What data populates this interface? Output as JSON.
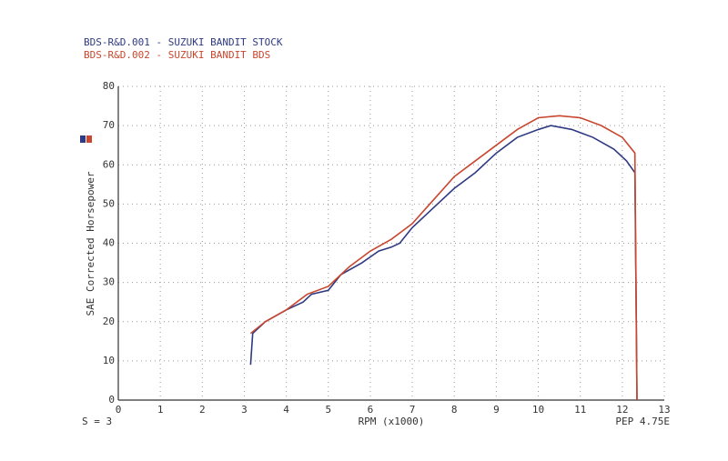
{
  "chart_data": {
    "type": "line",
    "legend_title": null,
    "xlabel": "RPM (x1000)",
    "ylabel": "SAE Corrected Horsepower",
    "footer_left": "S = 3",
    "footer_right": "PEP 4.75E",
    "xlim": [
      0,
      13
    ],
    "ylim": [
      0,
      80
    ],
    "xticks": [
      0,
      1,
      2,
      3,
      4,
      5,
      6,
      7,
      8,
      9,
      10,
      11,
      12,
      13
    ],
    "yticks": [
      0,
      10,
      20,
      30,
      40,
      50,
      60,
      70,
      80
    ],
    "grid": true,
    "series": [
      {
        "name": "BDS-R&D.001 - SUZUKI BANDIT STOCK",
        "color": "#2f3a82",
        "x": [
          3.15,
          3.2,
          3.5,
          4,
          4.4,
          4.6,
          5,
          5.3,
          5.8,
          6.2,
          6.5,
          6.7,
          7,
          7.5,
          8,
          8.5,
          9,
          9.5,
          10,
          10.3,
          10.8,
          11.3,
          11.8,
          12.1,
          12.3,
          12.35
        ],
        "values": [
          9,
          17,
          20,
          23,
          25,
          27,
          28,
          32,
          35,
          38,
          39,
          40,
          44,
          49,
          54,
          58,
          63,
          67,
          69,
          70,
          69,
          67,
          64,
          61,
          58,
          0
        ]
      },
      {
        "name": "BDS-R&D.002 - SUZUKI BANDIT BDS",
        "color": "#c8472e",
        "x": [
          3.15,
          3.5,
          4,
          4.5,
          5,
          5.5,
          6,
          6.5,
          7,
          7.5,
          8,
          8.5,
          9,
          9.5,
          10,
          10.5,
          11,
          11.5,
          12,
          12.3,
          12.35
        ],
        "values": [
          17,
          20,
          23,
          27,
          29,
          34,
          38,
          41,
          45,
          51,
          57,
          61,
          65,
          69,
          72,
          72.5,
          72,
          70,
          67,
          63,
          0
        ]
      }
    ]
  }
}
